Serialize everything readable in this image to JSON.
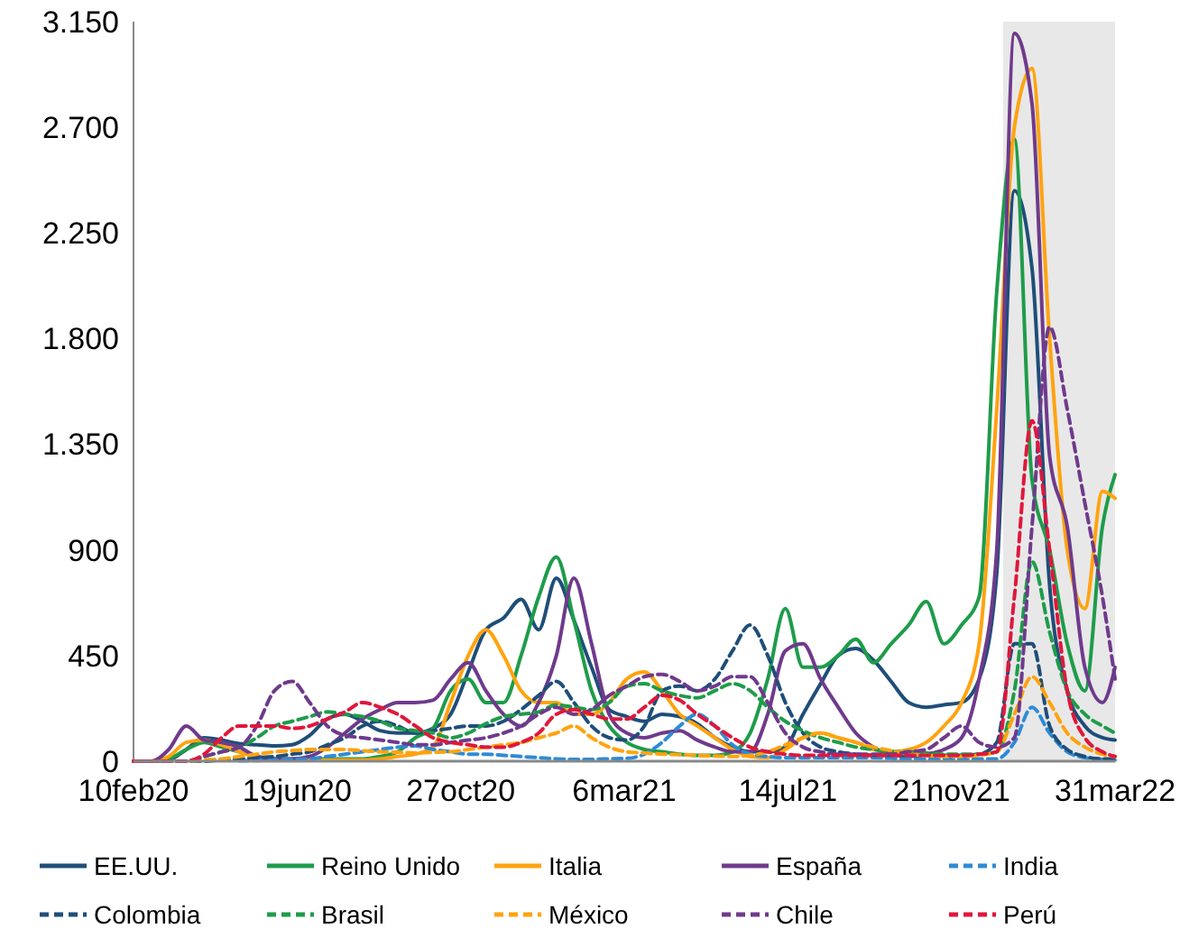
{
  "chart_data": {
    "type": "line",
    "x": [
      "2020-02-10",
      "2020-02-24",
      "2020-03-09",
      "2020-03-23",
      "2020-04-06",
      "2020-04-20",
      "2020-05-04",
      "2020-05-18",
      "2020-06-01",
      "2020-06-15",
      "2020-06-29",
      "2020-07-13",
      "2020-07-27",
      "2020-08-10",
      "2020-08-24",
      "2020-09-07",
      "2020-09-21",
      "2020-10-05",
      "2020-10-19",
      "2020-11-02",
      "2020-11-16",
      "2020-11-30",
      "2020-12-14",
      "2020-12-28",
      "2021-01-11",
      "2021-01-25",
      "2021-02-08",
      "2021-02-22",
      "2021-03-08",
      "2021-03-22",
      "2021-04-05",
      "2021-04-19",
      "2021-05-03",
      "2021-05-17",
      "2021-05-31",
      "2021-06-14",
      "2021-06-28",
      "2021-07-12",
      "2021-07-26",
      "2021-08-09",
      "2021-08-23",
      "2021-09-06",
      "2021-09-20",
      "2021-10-04",
      "2021-10-18",
      "2021-11-01",
      "2021-11-15",
      "2021-11-29",
      "2021-12-13",
      "2021-12-27",
      "2022-01-10",
      "2022-01-24",
      "2022-02-07",
      "2022-02-21",
      "2022-03-07",
      "2022-03-21",
      "2022-03-31"
    ],
    "xlim": [
      "2020-02-10",
      "2022-03-31"
    ],
    "xticks": [
      {
        "value": "2020-02-10",
        "label": "10feb20"
      },
      {
        "value": "2020-06-19",
        "label": "19jun20"
      },
      {
        "value": "2020-10-27",
        "label": "27oct20"
      },
      {
        "value": "2021-03-06",
        "label": "6mar21"
      },
      {
        "value": "2021-07-14",
        "label": "14jul21"
      },
      {
        "value": "2021-11-21",
        "label": "21nov21"
      },
      {
        "value": "2022-03-31",
        "label": "31mar22"
      }
    ],
    "ylim": [
      0,
      3150
    ],
    "yticks": [
      0,
      {
        "value": 450,
        "label": "450"
      },
      {
        "value": 900,
        "label": "900"
      },
      {
        "value": 1350,
        "label": "1.350"
      },
      {
        "value": 1800,
        "label": "1.800"
      },
      {
        "value": 2250,
        "label": "2.250"
      },
      {
        "value": 2700,
        "label": "2.700"
      },
      {
        "value": 3150,
        "label": "3.150"
      }
    ],
    "grid": false,
    "legend": "bottom",
    "bands": [
      {
        "axis": "x",
        "from": "2022-01-01",
        "to": "2022-03-31",
        "color": "#e8e8e8"
      }
    ],
    "series": [
      {
        "name": "EE.UU.",
        "color": "#1f4e79",
        "line_style": "solid",
        "values": [
          0,
          0,
          5,
          50,
          100,
          90,
          75,
          70,
          65,
          70,
          110,
          180,
          200,
          170,
          130,
          120,
          120,
          140,
          200,
          380,
          560,
          610,
          690,
          560,
          780,
          600,
          400,
          220,
          190,
          170,
          200,
          190,
          160,
          100,
          60,
          40,
          40,
          60,
          200,
          330,
          450,
          480,
          430,
          340,
          250,
          230,
          240,
          250,
          350,
          800,
          2430,
          2100,
          750,
          300,
          150,
          100,
          90
        ]
      },
      {
        "name": "Reino Unido",
        "color": "#1e9c4a",
        "line_style": "solid",
        "values": [
          0,
          0,
          10,
          50,
          80,
          60,
          40,
          20,
          10,
          10,
          10,
          10,
          10,
          10,
          20,
          40,
          100,
          140,
          300,
          350,
          250,
          250,
          450,
          700,
          870,
          600,
          300,
          150,
          80,
          50,
          40,
          30,
          25,
          25,
          40,
          120,
          350,
          650,
          400,
          400,
          450,
          520,
          420,
          500,
          580,
          680,
          500,
          580,
          700,
          2000,
          2650,
          1200,
          900,
          500,
          300,
          1000,
          1220
        ]
      },
      {
        "name": "Italia",
        "color": "#ffa30f",
        "line_style": "solid",
        "values": [
          0,
          0,
          20,
          80,
          90,
          70,
          40,
          20,
          8,
          5,
          5,
          5,
          5,
          5,
          10,
          20,
          30,
          60,
          250,
          450,
          560,
          450,
          300,
          250,
          250,
          200,
          200,
          250,
          350,
          380,
          300,
          200,
          150,
          100,
          50,
          20,
          15,
          50,
          100,
          120,
          100,
          80,
          50,
          40,
          50,
          80,
          150,
          250,
          500,
          1500,
          2700,
          2950,
          1800,
          900,
          650,
          1150,
          1120
        ]
      },
      {
        "name": "España",
        "color": "#6f3a8c",
        "line_style": "solid",
        "values": [
          0,
          0,
          50,
          150,
          90,
          80,
          60,
          20,
          10,
          10,
          20,
          60,
          120,
          180,
          220,
          250,
          250,
          260,
          350,
          420,
          300,
          200,
          150,
          250,
          450,
          780,
          500,
          200,
          120,
          100,
          120,
          130,
          90,
          60,
          40,
          40,
          200,
          470,
          500,
          350,
          230,
          120,
          60,
          30,
          20,
          30,
          50,
          100,
          350,
          900,
          3100,
          2800,
          1300,
          1000,
          400,
          250,
          400
        ]
      },
      {
        "name": "India",
        "color": "#2e8bd6",
        "line_style": "dashed",
        "values": [
          null,
          null,
          null,
          null,
          null,
          null,
          2,
          3,
          5,
          8,
          10,
          20,
          30,
          40,
          50,
          60,
          65,
          50,
          40,
          30,
          30,
          25,
          20,
          15,
          10,
          8,
          8,
          10,
          12,
          30,
          80,
          150,
          200,
          150,
          70,
          30,
          20,
          15,
          15,
          15,
          15,
          15,
          15,
          12,
          10,
          10,
          10,
          10,
          10,
          10,
          80,
          230,
          120,
          40,
          15,
          8,
          5
        ]
      },
      {
        "name": "Colombia",
        "color": "#1f4e79",
        "line_style": "dashed",
        "values": [
          0,
          0,
          0,
          0,
          0,
          5,
          10,
          15,
          20,
          30,
          40,
          70,
          100,
          150,
          170,
          150,
          120,
          130,
          140,
          150,
          150,
          170,
          220,
          280,
          340,
          250,
          150,
          100,
          90,
          150,
          300,
          320,
          300,
          350,
          470,
          580,
          450,
          250,
          120,
          60,
          40,
          30,
          25,
          25,
          25,
          25,
          25,
          25,
          30,
          80,
          500,
          500,
          150,
          50,
          20,
          10,
          10
        ]
      },
      {
        "name": "Brasil",
        "color": "#1e9c4a",
        "line_style": "dashed",
        "values": [
          0,
          0,
          0,
          0,
          20,
          40,
          60,
          100,
          150,
          170,
          190,
          210,
          200,
          190,
          170,
          140,
          130,
          120,
          100,
          120,
          160,
          190,
          200,
          210,
          240,
          230,
          220,
          250,
          320,
          330,
          300,
          280,
          270,
          300,
          330,
          300,
          230,
          170,
          130,
          100,
          80,
          60,
          50,
          40,
          40,
          35,
          30,
          30,
          30,
          40,
          300,
          850,
          550,
          300,
          200,
          150,
          120
        ]
      },
      {
        "name": "México",
        "color": "#ffa30f",
        "line_style": "dashed",
        "values": [
          0,
          0,
          0,
          0,
          5,
          10,
          20,
          30,
          40,
          45,
          50,
          50,
          50,
          45,
          40,
          38,
          35,
          38,
          40,
          50,
          60,
          70,
          80,
          100,
          120,
          150,
          100,
          60,
          40,
          35,
          30,
          28,
          25,
          22,
          20,
          25,
          40,
          70,
          100,
          120,
          100,
          80,
          60,
          45,
          30,
          25,
          20,
          20,
          25,
          40,
          200,
          360,
          250,
          120,
          60,
          30,
          20
        ]
      },
      {
        "name": "Chile",
        "color": "#6f3a8c",
        "line_style": "dashed",
        "values": [
          0,
          0,
          0,
          0,
          20,
          40,
          60,
          150,
          300,
          340,
          250,
          150,
          110,
          100,
          90,
          80,
          70,
          70,
          80,
          90,
          100,
          120,
          150,
          200,
          230,
          200,
          220,
          280,
          320,
          360,
          370,
          340,
          300,
          320,
          360,
          360,
          250,
          120,
          60,
          40,
          30,
          30,
          30,
          30,
          40,
          50,
          100,
          150,
          80,
          60,
          100,
          1000,
          1850,
          1500,
          1100,
          700,
          350
        ]
      },
      {
        "name": "Perú",
        "color": "#e0173b",
        "line_style": "dashed",
        "values": [
          0,
          0,
          0,
          0,
          30,
          100,
          150,
          150,
          150,
          140,
          150,
          180,
          210,
          250,
          230,
          200,
          150,
          100,
          80,
          70,
          60,
          60,
          80,
          120,
          200,
          220,
          200,
          180,
          180,
          230,
          280,
          260,
          200,
          150,
          100,
          60,
          40,
          30,
          25,
          25,
          25,
          25,
          25,
          25,
          25,
          25,
          25,
          25,
          30,
          40,
          700,
          1450,
          900,
          300,
          100,
          40,
          20
        ]
      }
    ]
  }
}
